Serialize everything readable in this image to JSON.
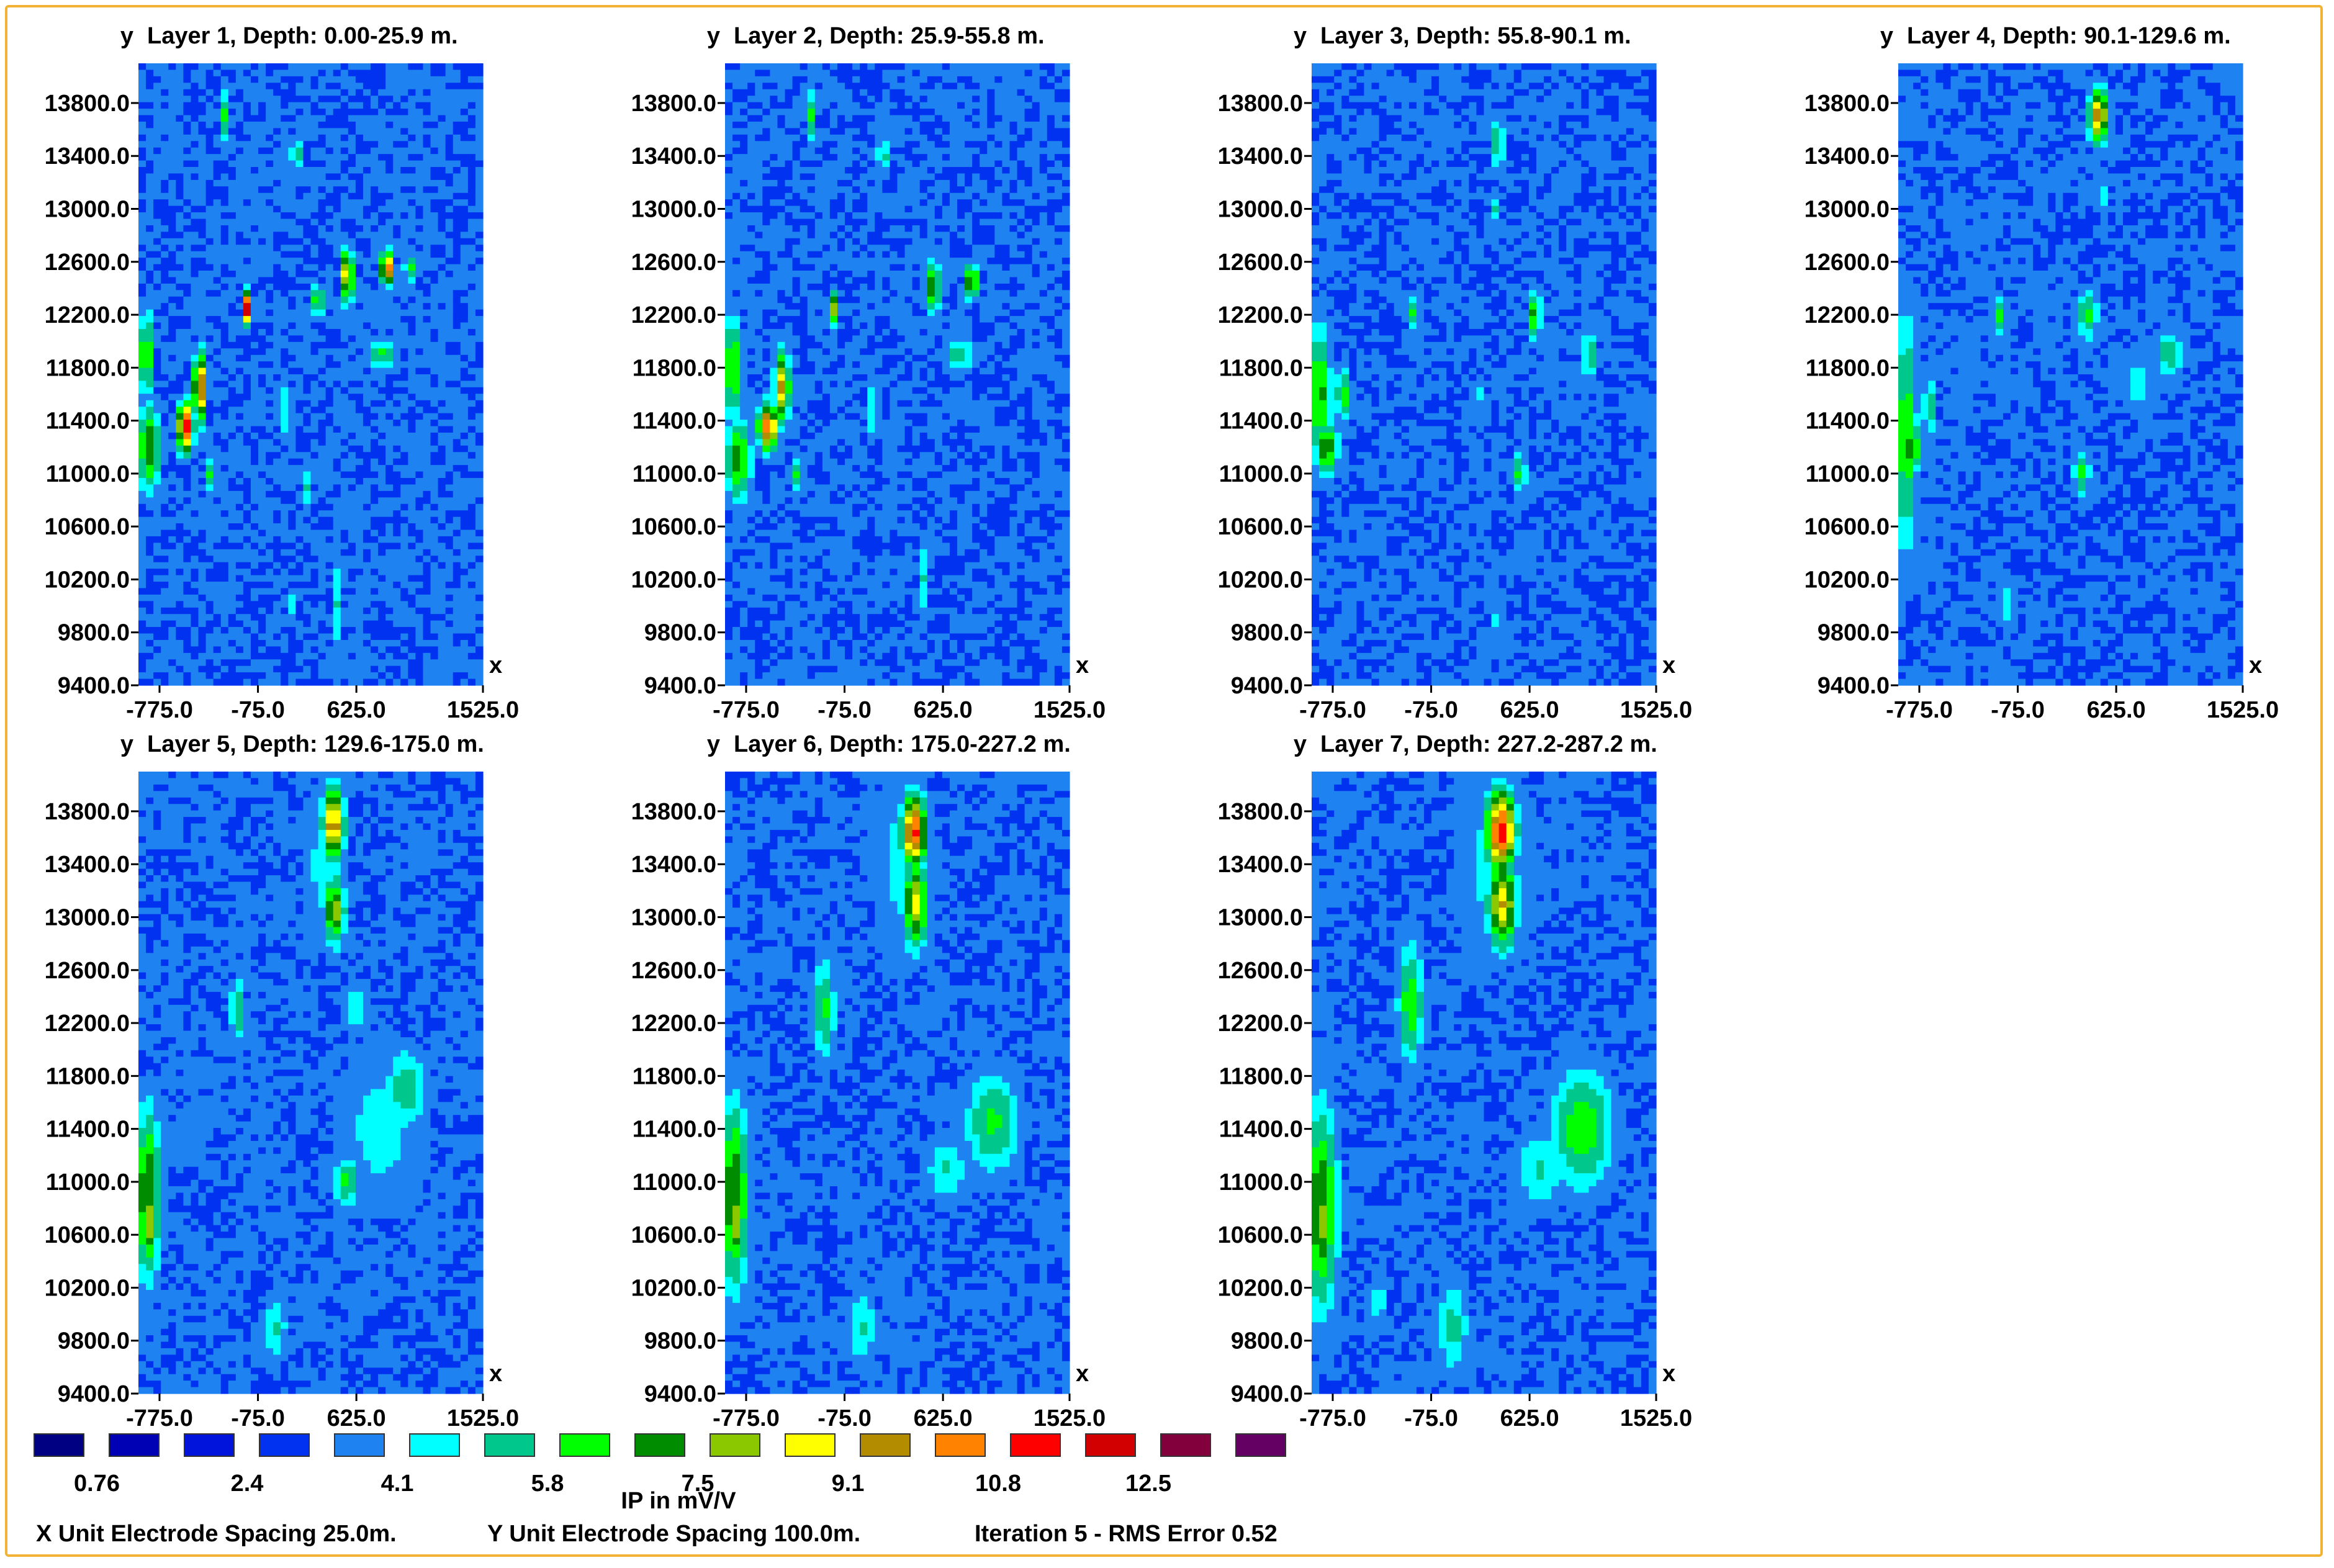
{
  "chart_data": {
    "type": "heatmap",
    "x_ticks": [
      "-775.0",
      "-75.0",
      "625.0",
      "1525.0"
    ],
    "x_tick_values": [
      -775,
      -75,
      625,
      1525
    ],
    "x_range": [
      -925,
      1525
    ],
    "y_ticks": [
      "13800.0",
      "13400.0",
      "13000.0",
      "12600.0",
      "12200.0",
      "11800.0",
      "11400.0",
      "11000.0",
      "10600.0",
      "10200.0",
      "9800.0",
      "9400.0"
    ],
    "y_tick_values": [
      13800,
      13400,
      13000,
      12600,
      12200,
      11800,
      11400,
      11000,
      10600,
      10200,
      9800,
      9400
    ],
    "y_range": [
      9400,
      14100
    ],
    "x_axis_label": "x",
    "y_axis_label": "y",
    "panels": [
      {
        "title": "Layer 1, Depth: 0.00-25.9 m.",
        "anomalies": [
          {
            "x": -870,
            "y": 11900,
            "sx": 40,
            "sy": 250,
            "v": 7
          },
          {
            "x": -850,
            "y": 11200,
            "sx": 60,
            "sy": 250,
            "v": 7.5
          },
          {
            "x": -590,
            "y": 11350,
            "sx": 40,
            "sy": 140,
            "v": 12
          },
          {
            "x": -490,
            "y": 11650,
            "sx": 30,
            "sy": 200,
            "v": 11
          },
          {
            "x": -410,
            "y": 11000,
            "sx": 35,
            "sy": 90,
            "v": 6
          },
          {
            "x": -150,
            "y": 12250,
            "sx": 25,
            "sy": 90,
            "v": 12.5
          },
          {
            "x": -310,
            "y": 13700,
            "sx": 20,
            "sy": 150,
            "v": 6
          },
          {
            "x": -230,
            "y": 13100,
            "sx": 20,
            "sy": 250,
            "v": 5
          },
          {
            "x": 200,
            "y": 13400,
            "sx": 30,
            "sy": 90,
            "v": 6
          },
          {
            "x": 350,
            "y": 12300,
            "sx": 35,
            "sy": 90,
            "v": 7
          },
          {
            "x": 560,
            "y": 12500,
            "sx": 30,
            "sy": 150,
            "v": 10
          },
          {
            "x": 840,
            "y": 12550,
            "sx": 30,
            "sy": 90,
            "v": 12
          },
          {
            "x": 800,
            "y": 11900,
            "sx": 80,
            "sy": 80,
            "v": 6
          },
          {
            "x": 1000,
            "y": 12550,
            "sx": 25,
            "sy": 80,
            "v": 7
          },
          {
            "x": 130,
            "y": 11500,
            "sx": 25,
            "sy": 200,
            "v": 5.5
          },
          {
            "x": 280,
            "y": 10900,
            "sx": 25,
            "sy": 150,
            "v": 5
          },
          {
            "x": 480,
            "y": 10000,
            "sx": 25,
            "sy": 300,
            "v": 5
          },
          {
            "x": 180,
            "y": 10000,
            "sx": 20,
            "sy": 100,
            "v": 5
          }
        ]
      },
      {
        "title": "Layer 2, Depth: 25.9-55.8 m.",
        "anomalies": [
          {
            "x": -870,
            "y": 11800,
            "sx": 50,
            "sy": 300,
            "v": 7
          },
          {
            "x": -830,
            "y": 11100,
            "sx": 70,
            "sy": 250,
            "v": 7
          },
          {
            "x": -620,
            "y": 11350,
            "sx": 50,
            "sy": 130,
            "v": 11
          },
          {
            "x": -520,
            "y": 11650,
            "sx": 40,
            "sy": 200,
            "v": 9.5
          },
          {
            "x": -420,
            "y": 11000,
            "sx": 35,
            "sy": 90,
            "v": 6
          },
          {
            "x": -150,
            "y": 12250,
            "sx": 25,
            "sy": 90,
            "v": 8
          },
          {
            "x": -310,
            "y": 13700,
            "sx": 20,
            "sy": 150,
            "v": 6
          },
          {
            "x": -230,
            "y": 13100,
            "sx": 20,
            "sy": 250,
            "v": 5
          },
          {
            "x": 200,
            "y": 13400,
            "sx": 35,
            "sy": 100,
            "v": 5.5
          },
          {
            "x": 560,
            "y": 12400,
            "sx": 30,
            "sy": 150,
            "v": 8.5
          },
          {
            "x": 830,
            "y": 12450,
            "sx": 30,
            "sy": 100,
            "v": 9
          },
          {
            "x": 750,
            "y": 11900,
            "sx": 90,
            "sy": 90,
            "v": 5.5
          },
          {
            "x": 130,
            "y": 11500,
            "sx": 25,
            "sy": 200,
            "v": 5.5
          },
          {
            "x": 480,
            "y": 10200,
            "sx": 25,
            "sy": 250,
            "v": 5
          }
        ]
      },
      {
        "title": "Layer 3, Depth: 55.8-90.1 m.",
        "anomalies": [
          {
            "x": -870,
            "y": 11600,
            "sx": 60,
            "sy": 400,
            "v": 7
          },
          {
            "x": -820,
            "y": 11200,
            "sx": 60,
            "sy": 150,
            "v": 7.5
          },
          {
            "x": -700,
            "y": 11600,
            "sx": 40,
            "sy": 150,
            "v": 6.5
          },
          {
            "x": 400,
            "y": 13500,
            "sx": 35,
            "sy": 150,
            "v": 6
          },
          {
            "x": 380,
            "y": 13000,
            "sx": 25,
            "sy": 100,
            "v": 5
          },
          {
            "x": -200,
            "y": 12200,
            "sx": 25,
            "sy": 100,
            "v": 6
          },
          {
            "x": 660,
            "y": 12200,
            "sx": 35,
            "sy": 150,
            "v": 7
          },
          {
            "x": 1050,
            "y": 11900,
            "sx": 35,
            "sy": 150,
            "v": 6
          },
          {
            "x": 550,
            "y": 11000,
            "sx": 40,
            "sy": 130,
            "v": 6
          },
          {
            "x": 250,
            "y": 11600,
            "sx": 25,
            "sy": 100,
            "v": 5.5
          },
          {
            "x": -500,
            "y": 11000,
            "sx": 25,
            "sy": 100,
            "v": 4.5
          },
          {
            "x": 400,
            "y": 9900,
            "sx": 40,
            "sy": 150,
            "v": 4.5
          }
        ]
      },
      {
        "title": "Layer 4, Depth: 90.1-129.6 m.",
        "anomalies": [
          {
            "x": -870,
            "y": 11300,
            "sx": 60,
            "sy": 700,
            "v": 6.5
          },
          {
            "x": -830,
            "y": 11200,
            "sx": 50,
            "sy": 150,
            "v": 7.5
          },
          {
            "x": -700,
            "y": 11500,
            "sx": 40,
            "sy": 200,
            "v": 5.5
          },
          {
            "x": 500,
            "y": 13700,
            "sx": 50,
            "sy": 150,
            "v": 10
          },
          {
            "x": 520,
            "y": 13100,
            "sx": 30,
            "sy": 120,
            "v": 5
          },
          {
            "x": -200,
            "y": 12200,
            "sx": 35,
            "sy": 120,
            "v": 6
          },
          {
            "x": 420,
            "y": 12200,
            "sx": 60,
            "sy": 150,
            "v": 6
          },
          {
            "x": 1000,
            "y": 11900,
            "sx": 80,
            "sy": 150,
            "v": 5.5
          },
          {
            "x": 380,
            "y": 11000,
            "sx": 45,
            "sy": 150,
            "v": 6
          },
          {
            "x": 780,
            "y": 11700,
            "sx": 120,
            "sy": 200,
            "v": 4.5
          },
          {
            "x": -150,
            "y": 10000,
            "sx": 50,
            "sy": 200,
            "v": 4.5
          }
        ]
      },
      {
        "title": "Layer 5, Depth: 129.6-175.0 m.",
        "anomalies": [
          {
            "x": -860,
            "y": 10900,
            "sx": 70,
            "sy": 500,
            "v": 7.5
          },
          {
            "x": -850,
            "y": 10700,
            "sx": 40,
            "sy": 250,
            "v": 8
          },
          {
            "x": 460,
            "y": 13700,
            "sx": 55,
            "sy": 200,
            "v": 10
          },
          {
            "x": 470,
            "y": 13050,
            "sx": 55,
            "sy": 200,
            "v": 8
          },
          {
            "x": 400,
            "y": 13400,
            "sx": 120,
            "sy": 500,
            "v": 4.5
          },
          {
            "x": -220,
            "y": 12300,
            "sx": 40,
            "sy": 180,
            "v": 6
          },
          {
            "x": 620,
            "y": 12300,
            "sx": 80,
            "sy": 150,
            "v": 5
          },
          {
            "x": 980,
            "y": 11700,
            "sx": 120,
            "sy": 250,
            "v": 5.5
          },
          {
            "x": 550,
            "y": 11000,
            "sx": 70,
            "sy": 150,
            "v": 6
          },
          {
            "x": 800,
            "y": 11400,
            "sx": 250,
            "sy": 500,
            "v": 4.5
          },
          {
            "x": 50,
            "y": 9900,
            "sx": 70,
            "sy": 200,
            "v": 5
          }
        ]
      },
      {
        "title": "Layer 6, Depth: 175.0-227.2 m.",
        "anomalies": [
          {
            "x": -860,
            "y": 10900,
            "sx": 80,
            "sy": 550,
            "v": 7.5
          },
          {
            "x": -850,
            "y": 10700,
            "sx": 40,
            "sy": 250,
            "v": 8
          },
          {
            "x": 420,
            "y": 13650,
            "sx": 65,
            "sy": 200,
            "v": 11
          },
          {
            "x": 430,
            "y": 13100,
            "sx": 65,
            "sy": 250,
            "v": 8.5
          },
          {
            "x": 350,
            "y": 13400,
            "sx": 180,
            "sy": 600,
            "v": 4.5
          },
          {
            "x": -220,
            "y": 12300,
            "sx": 60,
            "sy": 300,
            "v": 6
          },
          {
            "x": 980,
            "y": 11450,
            "sx": 150,
            "sy": 300,
            "v": 6
          },
          {
            "x": 650,
            "y": 11100,
            "sx": 120,
            "sy": 200,
            "v": 5
          },
          {
            "x": 50,
            "y": 9900,
            "sx": 80,
            "sy": 250,
            "v": 5
          }
        ]
      },
      {
        "title": "Layer 7, Depth: 227.2-287.2 m.",
        "anomalies": [
          {
            "x": -860,
            "y": 10800,
            "sx": 90,
            "sy": 600,
            "v": 7.5
          },
          {
            "x": -850,
            "y": 10700,
            "sx": 45,
            "sy": 300,
            "v": 8
          },
          {
            "x": 420,
            "y": 13650,
            "sx": 75,
            "sy": 230,
            "v": 11.5
          },
          {
            "x": 430,
            "y": 13100,
            "sx": 75,
            "sy": 250,
            "v": 9.2
          },
          {
            "x": 380,
            "y": 13400,
            "sx": 220,
            "sy": 600,
            "v": 4.5
          },
          {
            "x": -220,
            "y": 12350,
            "sx": 70,
            "sy": 350,
            "v": 6.5
          },
          {
            "x": 1000,
            "y": 11400,
            "sx": 170,
            "sy": 350,
            "v": 6.5
          },
          {
            "x": 700,
            "y": 11100,
            "sx": 150,
            "sy": 250,
            "v": 5
          },
          {
            "x": 80,
            "y": 9900,
            "sx": 90,
            "sy": 300,
            "v": 5.2
          },
          {
            "x": -450,
            "y": 10100,
            "sx": 60,
            "sy": 200,
            "v": 4.5
          }
        ]
      }
    ],
    "legend": {
      "colors": [
        "#000082",
        "#0000b4",
        "#0014dc",
        "#0032f0",
        "#1e82f0",
        "#00ffff",
        "#00c88c",
        "#00ff00",
        "#008c00",
        "#8cc800",
        "#ffff00",
        "#b48c00",
        "#ff8200",
        "#ff0000",
        "#d20000",
        "#82003c",
        "#640064"
      ],
      "labels": [
        "0.76",
        "2.4",
        "4.1",
        "5.8",
        "7.5",
        "9.1",
        "10.8",
        "12.5"
      ],
      "title": "IP in mV/V"
    }
  },
  "footer": {
    "x_spacing": "X Unit Electrode Spacing 25.0m.",
    "y_spacing": "Y Unit Electrode Spacing 100.0m.",
    "iteration": "Iteration 5 - RMS Error 0.52"
  },
  "colors": {
    "frame": "#f2b233",
    "background_low": "#0014dc",
    "background_mid": "#0032f0"
  }
}
